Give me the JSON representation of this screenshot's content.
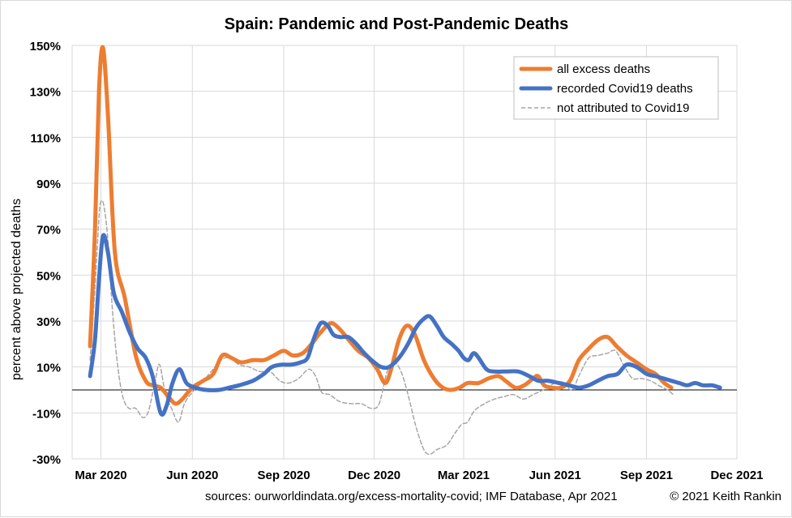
{
  "chart_data": {
    "type": "line",
    "title": {
      "country": "Spain",
      "rest": ": Pandemic and Post-Pandemic Deaths"
    },
    "ylabel": "percent above projected deaths",
    "xlabel": "",
    "ylim": [
      -30,
      150
    ],
    "yticks": [
      "150%",
      "130%",
      "110%",
      "90%",
      "70%",
      "50%",
      "30%",
      "10%",
      "-10%",
      "-30%"
    ],
    "ytick_values": [
      150,
      130,
      110,
      90,
      70,
      50,
      30,
      10,
      -10,
      -30
    ],
    "xlim": [
      "2020-02-01",
      "2021-12-01"
    ],
    "xticks": [
      {
        "date": "2020-03-01",
        "label": "Mar 2020"
      },
      {
        "date": "2020-06-01",
        "label": "Jun 2020"
      },
      {
        "date": "2020-09-01",
        "label": "Sep 2020"
      },
      {
        "date": "2020-12-01",
        "label": "Dec 2020"
      },
      {
        "date": "2021-03-01",
        "label": "Mar 2021"
      },
      {
        "date": "2021-06-01",
        "label": "Jun 2021"
      },
      {
        "date": "2021-09-01",
        "label": "Sep 2021"
      },
      {
        "date": "2021-12-01",
        "label": "Dec 2021"
      }
    ],
    "grid": true,
    "zero_line": true,
    "legend_position": "top-right",
    "series": [
      {
        "name": "all excess deaths",
        "color": "#ed7d31",
        "style": "solid",
        "points": [
          [
            "2020-02-19",
            19
          ],
          [
            "2020-02-24",
            70
          ],
          [
            "2020-02-28",
            130
          ],
          [
            "2020-03-03",
            149
          ],
          [
            "2020-03-08",
            120
          ],
          [
            "2020-03-15",
            60
          ],
          [
            "2020-03-25",
            40
          ],
          [
            "2020-04-05",
            15
          ],
          [
            "2020-04-15",
            4
          ],
          [
            "2020-04-22",
            2
          ],
          [
            "2020-04-30",
            1
          ],
          [
            "2020-05-08",
            -3
          ],
          [
            "2020-05-15",
            -6
          ],
          [
            "2020-05-22",
            -4
          ],
          [
            "2020-06-01",
            1
          ],
          [
            "2020-06-12",
            4
          ],
          [
            "2020-06-22",
            7
          ],
          [
            "2020-07-01",
            15
          ],
          [
            "2020-07-10",
            14
          ],
          [
            "2020-07-20",
            12
          ],
          [
            "2020-08-01",
            13
          ],
          [
            "2020-08-12",
            13
          ],
          [
            "2020-08-22",
            15
          ],
          [
            "2020-09-01",
            17
          ],
          [
            "2020-09-10",
            15
          ],
          [
            "2020-09-20",
            16
          ],
          [
            "2020-09-29",
            20
          ],
          [
            "2020-10-08",
            25
          ],
          [
            "2020-10-18",
            29
          ],
          [
            "2020-10-26",
            27
          ],
          [
            "2020-11-05",
            22
          ],
          [
            "2020-11-15",
            17
          ],
          [
            "2020-11-25",
            14
          ],
          [
            "2020-12-04",
            9
          ],
          [
            "2020-12-12",
            3
          ],
          [
            "2020-12-18",
            9
          ],
          [
            "2020-12-26",
            22
          ],
          [
            "2021-01-03",
            28
          ],
          [
            "2021-01-11",
            24
          ],
          [
            "2021-01-20",
            13
          ],
          [
            "2021-01-30",
            5
          ],
          [
            "2021-02-08",
            1
          ],
          [
            "2021-02-16",
            0
          ],
          [
            "2021-02-25",
            1
          ],
          [
            "2021-03-05",
            3
          ],
          [
            "2021-03-16",
            3
          ],
          [
            "2021-03-26",
            5
          ],
          [
            "2021-04-05",
            6
          ],
          [
            "2021-04-12",
            4
          ],
          [
            "2021-04-22",
            1
          ],
          [
            "2021-05-01",
            2
          ],
          [
            "2021-05-10",
            5
          ],
          [
            "2021-05-15",
            6
          ],
          [
            "2021-05-21",
            2
          ],
          [
            "2021-05-29",
            1
          ],
          [
            "2021-06-07",
            1
          ],
          [
            "2021-06-16",
            4
          ],
          [
            "2021-06-25",
            13
          ],
          [
            "2021-07-05",
            18
          ],
          [
            "2021-07-15",
            22
          ],
          [
            "2021-07-24",
            23
          ],
          [
            "2021-08-02",
            19
          ],
          [
            "2021-08-12",
            15
          ],
          [
            "2021-08-22",
            12
          ],
          [
            "2021-09-01",
            9
          ],
          [
            "2021-09-10",
            7
          ],
          [
            "2021-09-19",
            3
          ],
          [
            "2021-09-26",
            1
          ]
        ]
      },
      {
        "name": "recorded Covid19 deaths",
        "color": "#4472c4",
        "style": "solid",
        "points": [
          [
            "2020-02-19",
            6
          ],
          [
            "2020-02-24",
            22
          ],
          [
            "2020-02-28",
            48
          ],
          [
            "2020-03-03",
            67
          ],
          [
            "2020-03-08",
            60
          ],
          [
            "2020-03-14",
            42
          ],
          [
            "2020-03-22",
            34
          ],
          [
            "2020-03-30",
            25
          ],
          [
            "2020-04-07",
            18
          ],
          [
            "2020-04-15",
            14
          ],
          [
            "2020-04-22",
            6
          ],
          [
            "2020-04-30",
            -10
          ],
          [
            "2020-05-06",
            -7
          ],
          [
            "2020-05-12",
            3
          ],
          [
            "2020-05-19",
            9
          ],
          [
            "2020-05-26",
            3
          ],
          [
            "2020-06-04",
            1
          ],
          [
            "2020-06-15",
            0
          ],
          [
            "2020-06-28",
            0
          ],
          [
            "2020-07-08",
            1
          ],
          [
            "2020-07-18",
            2
          ],
          [
            "2020-08-01",
            4
          ],
          [
            "2020-08-12",
            7
          ],
          [
            "2020-08-20",
            10
          ],
          [
            "2020-08-30",
            11
          ],
          [
            "2020-09-08",
            11
          ],
          [
            "2020-09-18",
            12
          ],
          [
            "2020-09-25",
            14
          ],
          [
            "2020-10-01",
            22
          ],
          [
            "2020-10-08",
            29
          ],
          [
            "2020-10-15",
            28
          ],
          [
            "2020-10-21",
            24
          ],
          [
            "2020-10-28",
            23
          ],
          [
            "2020-11-05",
            23
          ],
          [
            "2020-11-13",
            20
          ],
          [
            "2020-11-21",
            16
          ],
          [
            "2020-12-01",
            12
          ],
          [
            "2020-12-08",
            10
          ],
          [
            "2020-12-16",
            10
          ],
          [
            "2020-12-26",
            14
          ],
          [
            "2021-01-04",
            20
          ],
          [
            "2021-01-12",
            27
          ],
          [
            "2021-01-20",
            31
          ],
          [
            "2021-01-26",
            32
          ],
          [
            "2021-02-02",
            28
          ],
          [
            "2021-02-09",
            23
          ],
          [
            "2021-02-17",
            20
          ],
          [
            "2021-02-24",
            17
          ],
          [
            "2021-03-01",
            14
          ],
          [
            "2021-03-06",
            13
          ],
          [
            "2021-03-11",
            16
          ],
          [
            "2021-03-16",
            14
          ],
          [
            "2021-03-24",
            9
          ],
          [
            "2021-04-01",
            8
          ],
          [
            "2021-04-12",
            8
          ],
          [
            "2021-04-25",
            8
          ],
          [
            "2021-05-06",
            6
          ],
          [
            "2021-05-15",
            4
          ],
          [
            "2021-05-25",
            4
          ],
          [
            "2021-06-05",
            3
          ],
          [
            "2021-06-15",
            2
          ],
          [
            "2021-06-25",
            1
          ],
          [
            "2021-07-05",
            2
          ],
          [
            "2021-07-14",
            4
          ],
          [
            "2021-07-24",
            6
          ],
          [
            "2021-08-03",
            7
          ],
          [
            "2021-08-12",
            11
          ],
          [
            "2021-08-22",
            10
          ],
          [
            "2021-09-01",
            7
          ],
          [
            "2021-09-10",
            6
          ],
          [
            "2021-09-18",
            5
          ],
          [
            "2021-09-26",
            4
          ],
          [
            "2021-10-04",
            3
          ],
          [
            "2021-10-12",
            2
          ],
          [
            "2021-10-20",
            3
          ],
          [
            "2021-10-28",
            2
          ],
          [
            "2021-11-06",
            2
          ],
          [
            "2021-11-14",
            1
          ]
        ]
      },
      {
        "name": "not attributed to Covid19",
        "color": "#a6a6a6",
        "style": "dashed",
        "points": [
          [
            "2020-02-19",
            13
          ],
          [
            "2020-02-24",
            45
          ],
          [
            "2020-02-28",
            75
          ],
          [
            "2020-03-01",
            82
          ],
          [
            "2020-03-04",
            80
          ],
          [
            "2020-03-08",
            65
          ],
          [
            "2020-03-13",
            32
          ],
          [
            "2020-03-18",
            10
          ],
          [
            "2020-03-23",
            -3
          ],
          [
            "2020-03-29",
            -8
          ],
          [
            "2020-04-05",
            -8
          ],
          [
            "2020-04-12",
            -12
          ],
          [
            "2020-04-18",
            -9
          ],
          [
            "2020-04-25",
            5
          ],
          [
            "2020-04-29",
            11
          ],
          [
            "2020-05-05",
            -2
          ],
          [
            "2020-05-11",
            -8
          ],
          [
            "2020-05-18",
            -14
          ],
          [
            "2020-05-24",
            -6
          ],
          [
            "2020-06-01",
            -1
          ],
          [
            "2020-06-10",
            3
          ],
          [
            "2020-06-20",
            8
          ],
          [
            "2020-06-30",
            13
          ],
          [
            "2020-07-08",
            14
          ],
          [
            "2020-07-18",
            11
          ],
          [
            "2020-07-28",
            10
          ],
          [
            "2020-08-08",
            8
          ],
          [
            "2020-08-18",
            8
          ],
          [
            "2020-08-28",
            4
          ],
          [
            "2020-09-06",
            3
          ],
          [
            "2020-09-16",
            5
          ],
          [
            "2020-09-26",
            9
          ],
          [
            "2020-10-03",
            6
          ],
          [
            "2020-10-09",
            -1
          ],
          [
            "2020-10-17",
            -2
          ],
          [
            "2020-10-27",
            -5
          ],
          [
            "2020-11-08",
            -6
          ],
          [
            "2020-11-18",
            -6
          ],
          [
            "2020-11-28",
            -8
          ],
          [
            "2020-12-06",
            -6
          ],
          [
            "2020-12-14",
            8
          ],
          [
            "2020-12-21",
            12
          ],
          [
            "2020-12-28",
            8
          ],
          [
            "2021-01-04",
            -2
          ],
          [
            "2021-01-12",
            -16
          ],
          [
            "2021-01-20",
            -26
          ],
          [
            "2021-01-26",
            -28
          ],
          [
            "2021-02-02",
            -26
          ],
          [
            "2021-02-12",
            -24
          ],
          [
            "2021-02-20",
            -19
          ],
          [
            "2021-02-27",
            -15
          ],
          [
            "2021-03-05",
            -14
          ],
          [
            "2021-03-12",
            -9
          ],
          [
            "2021-03-22",
            -6
          ],
          [
            "2021-04-01",
            -4
          ],
          [
            "2021-04-10",
            -3
          ],
          [
            "2021-04-20",
            -2
          ],
          [
            "2021-04-30",
            -4
          ],
          [
            "2021-05-10",
            -2
          ],
          [
            "2021-05-20",
            0
          ],
          [
            "2021-06-01",
            3
          ],
          [
            "2021-06-10",
            3
          ],
          [
            "2021-06-18",
            0
          ],
          [
            "2021-06-26",
            7
          ],
          [
            "2021-07-05",
            14
          ],
          [
            "2021-07-14",
            15
          ],
          [
            "2021-07-24",
            16
          ],
          [
            "2021-08-01",
            17
          ],
          [
            "2021-08-10",
            10
          ],
          [
            "2021-08-18",
            5
          ],
          [
            "2021-08-26",
            5
          ],
          [
            "2021-09-05",
            4
          ],
          [
            "2021-09-13",
            2
          ],
          [
            "2021-09-22",
            0
          ],
          [
            "2021-09-28",
            -2
          ]
        ]
      }
    ]
  },
  "footer": {
    "sources": "sources:  ourworldindata.org/excess-mortality-covid;  IMF Database, Apr 2021",
    "copyright": "© 2021 Keith Rankin"
  }
}
